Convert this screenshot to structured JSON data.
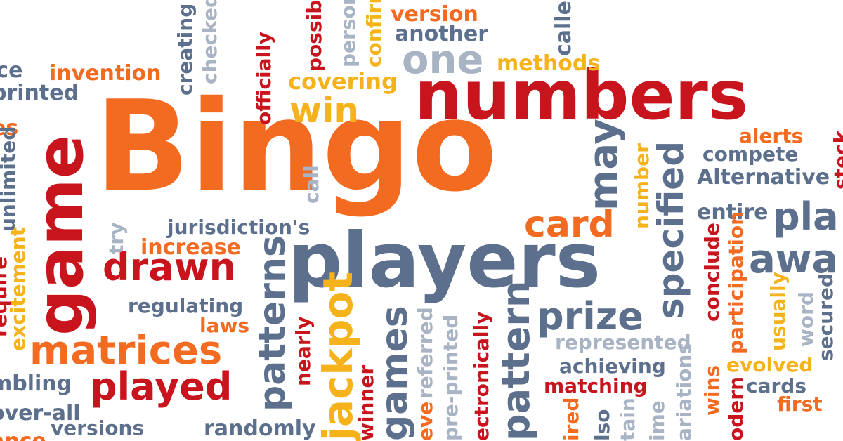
{
  "colors": {
    "red": "#c8141c",
    "orange": "#f26b21",
    "yellow": "#f6b21a",
    "slate": "#5c6f8c",
    "light": "#a8b3c4"
  },
  "words": [
    {
      "id": "bingo",
      "text": "Bingo",
      "color": "orange"
    },
    {
      "id": "numbers",
      "text": "numbers",
      "color": "red"
    },
    {
      "id": "players",
      "text": "players",
      "color": "slate"
    },
    {
      "id": "game",
      "text": "game",
      "color": "red"
    },
    {
      "id": "win",
      "text": "win",
      "color": "yellow"
    },
    {
      "id": "one",
      "text": "one",
      "color": "light"
    },
    {
      "id": "version",
      "text": "version",
      "color": "orange"
    },
    {
      "id": "another",
      "text": "another",
      "color": "slate"
    },
    {
      "id": "methods",
      "text": "methods",
      "color": "yellow"
    },
    {
      "id": "covering",
      "text": "covering",
      "color": "yellow"
    },
    {
      "id": "invention",
      "text": "invention",
      "color": "orange"
    },
    {
      "id": "printed",
      "text": "printed",
      "color": "slate"
    },
    {
      "id": "ice",
      "text": "ice",
      "color": "slate"
    },
    {
      "id": "es",
      "text": "es",
      "color": "orange"
    },
    {
      "id": "alerts",
      "text": "alerts",
      "color": "orange"
    },
    {
      "id": "compete",
      "text": "compete",
      "color": "slate"
    },
    {
      "id": "alternative",
      "text": "Alternative",
      "color": "slate"
    },
    {
      "id": "entire",
      "text": "entire",
      "color": "slate"
    },
    {
      "id": "pla",
      "text": "pla",
      "color": "slate"
    },
    {
      "id": "awa",
      "text": "awa",
      "color": "slate"
    },
    {
      "id": "card",
      "text": "card",
      "color": "orange"
    },
    {
      "id": "jurisdictions",
      "text": "jurisdiction's",
      "color": "slate"
    },
    {
      "id": "increase",
      "text": "increase",
      "color": "orange"
    },
    {
      "id": "drawn",
      "text": "drawn",
      "color": "red"
    },
    {
      "id": "regulating",
      "text": "regulating",
      "color": "slate"
    },
    {
      "id": "laws",
      "text": "laws",
      "color": "orange"
    },
    {
      "id": "matrices",
      "text": "matrices",
      "color": "orange"
    },
    {
      "id": "played",
      "text": "played",
      "color": "red"
    },
    {
      "id": "mbling",
      "text": "mbling",
      "color": "slate"
    },
    {
      "id": "overall",
      "text": "over-all",
      "color": "slate"
    },
    {
      "id": "versions",
      "text": "versions",
      "color": "slate"
    },
    {
      "id": "randomly",
      "text": "randomly",
      "color": "slate"
    },
    {
      "id": "prize",
      "text": "prize",
      "color": "slate"
    },
    {
      "id": "represented",
      "text": "represented",
      "color": "light"
    },
    {
      "id": "achieving",
      "text": "achieving",
      "color": "slate"
    },
    {
      "id": "matching",
      "text": "matching",
      "color": "red"
    },
    {
      "id": "evolved",
      "text": "evolved",
      "color": "yellow"
    },
    {
      "id": "cards",
      "text": "cards",
      "color": "slate"
    },
    {
      "id": "first",
      "text": "first",
      "color": "orange"
    },
    {
      "id": "creating",
      "text": "creating",
      "color": "slate"
    },
    {
      "id": "checked",
      "text": "checked",
      "color": "light"
    },
    {
      "id": "officially",
      "text": "officially",
      "color": "red"
    },
    {
      "id": "possible",
      "text": "possible",
      "color": "red"
    },
    {
      "id": "person",
      "text": "person",
      "color": "light"
    },
    {
      "id": "confirm",
      "text": "confirm",
      "color": "yellow"
    },
    {
      "id": "caller",
      "text": "caller",
      "color": "slate"
    },
    {
      "id": "may",
      "text": "may",
      "color": "slate"
    },
    {
      "id": "number",
      "text": "number",
      "color": "yellow"
    },
    {
      "id": "specified",
      "text": "specified",
      "color": "slate"
    },
    {
      "id": "conclude",
      "text": "conclude",
      "color": "red"
    },
    {
      "id": "participation",
      "text": "participation",
      "color": "orange"
    },
    {
      "id": "usually",
      "text": "usually",
      "color": "yellow"
    },
    {
      "id": "word",
      "text": "word",
      "color": "light"
    },
    {
      "id": "secured",
      "text": "secured",
      "color": "slate"
    },
    {
      "id": "call",
      "text": "call",
      "color": "light"
    },
    {
      "id": "try",
      "text": "try",
      "color": "light"
    },
    {
      "id": "unlimited",
      "text": "unlimited",
      "color": "slate"
    },
    {
      "id": "excitement",
      "text": "excitement",
      "color": "yellow"
    },
    {
      "id": "require",
      "text": "require",
      "color": "red"
    },
    {
      "id": "patterns",
      "text": "patterns",
      "color": "slate"
    },
    {
      "id": "jackpot",
      "text": "jackpot",
      "color": "yellow"
    },
    {
      "id": "nearly",
      "text": "nearly",
      "color": "red"
    },
    {
      "id": "winner",
      "text": "winner",
      "color": "red"
    },
    {
      "id": "games",
      "text": "games",
      "color": "slate"
    },
    {
      "id": "referred",
      "text": "referred",
      "color": "light"
    },
    {
      "id": "eve",
      "text": "eve",
      "color": "orange"
    },
    {
      "id": "preprinted",
      "text": "pre-printed",
      "color": "light"
    },
    {
      "id": "electronically",
      "text": "ectronically",
      "color": "red"
    },
    {
      "id": "pattern",
      "text": "pattern",
      "color": "slate"
    },
    {
      "id": "ired",
      "text": "ired",
      "color": "orange"
    },
    {
      "id": "lso",
      "text": "lso",
      "color": "slate"
    },
    {
      "id": "tain",
      "text": "tain",
      "color": "light"
    },
    {
      "id": "ime",
      "text": "ime",
      "color": "light"
    },
    {
      "id": "ariations",
      "text": "ariations",
      "color": "light"
    },
    {
      "id": "wins",
      "text": "wins",
      "color": "orange"
    },
    {
      "id": "odern",
      "text": "odern",
      "color": "red"
    },
    {
      "id": "steck",
      "text": "steck",
      "color": "red"
    },
    {
      "id": "ance",
      "text": "ance",
      "color": "orange"
    }
  ]
}
